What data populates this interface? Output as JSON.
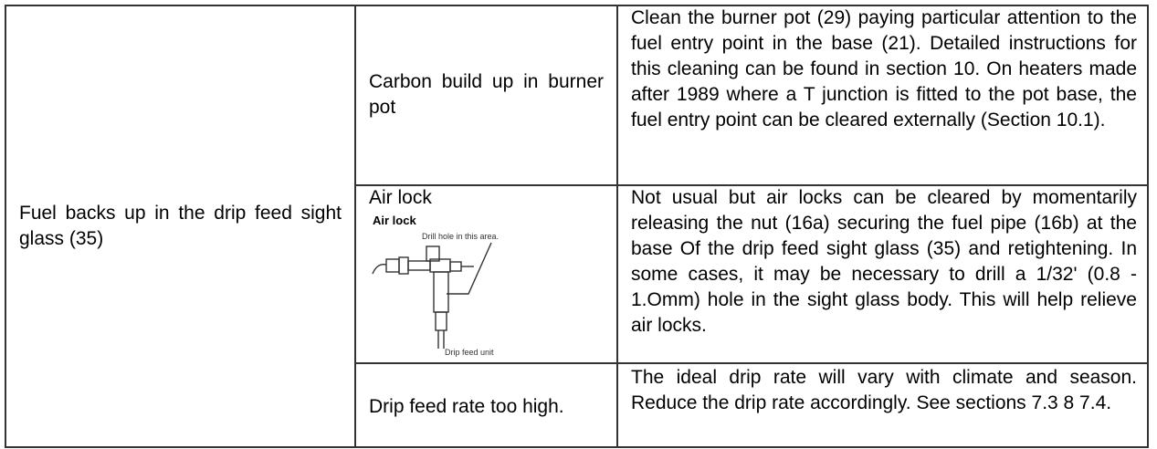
{
  "table": {
    "symptom": "Fuel backs up in the drip feed sight glass (35)",
    "rows": [
      {
        "cause": "Carbon build up in burner pot",
        "remedy": "Clean the burner pot (29) paying particular attention to the fuel entry point in the base (21). Detailed instructions for this cleaning can be found in section 10. On heaters made after 1989 where a T junction is fitted to the pot base, the fuel entry point can be cleared externally (Section 10.1)."
      },
      {
        "cause": "Air lock",
        "figure": {
          "title": "Air lock",
          "label_top": "Drill hole in this area.",
          "label_bottom": "Drip feed unit"
        },
        "remedy": "Not usual but air locks can be cleared by momentarily releasing the nut (16a) securing the fuel pipe (16b) at the base Of the drip feed sight glass (35) and retightening.  In some cases, it may be necessary to drill a 1/32' (0.8 - 1.Omm) hole in the sight glass body. This will help relieve air locks."
      },
      {
        "cause": "Drip feed rate too high.",
        "remedy": "The ideal drip rate will vary with climate and season. Reduce the drip rate accordingly. See sections 7.3 8 7.4."
      }
    ]
  }
}
